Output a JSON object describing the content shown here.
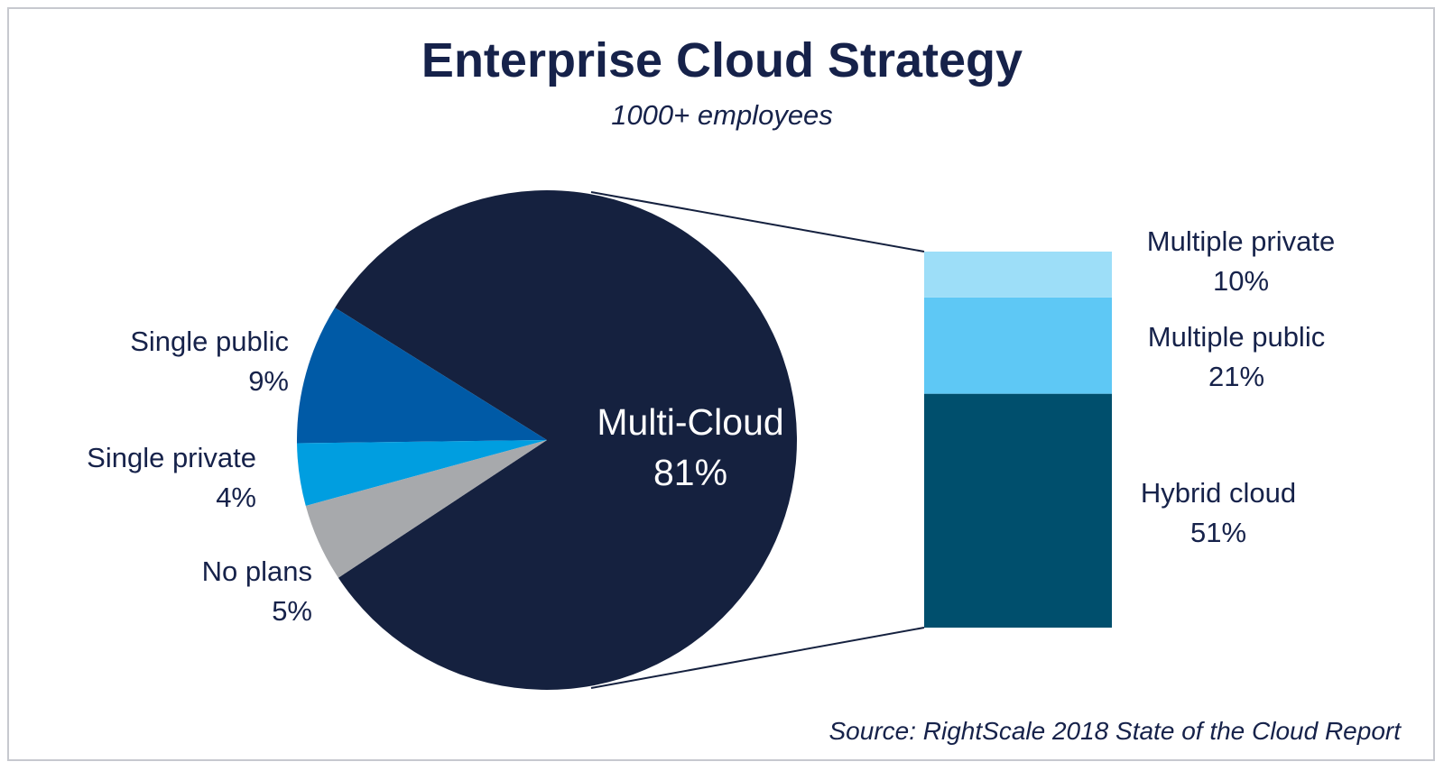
{
  "chart_data": [
    {
      "type": "pie",
      "title": "Enterprise Cloud Strategy",
      "subtitle": "1000+ employees",
      "slices": [
        {
          "label": "Multi-Cloud",
          "value": 81,
          "display": "81%",
          "color": "#15213f"
        },
        {
          "label": "Single public",
          "value": 9,
          "display": "9%",
          "color": "#005aa6"
        },
        {
          "label": "Single private",
          "value": 4,
          "display": "4%",
          "color": "#009ee0"
        },
        {
          "label": "No plans",
          "value": 5,
          "display": "5%",
          "color": "#a7a9ac"
        }
      ]
    },
    {
      "type": "bar",
      "stacked": true,
      "breakdown_of": "Multi-Cloud",
      "segments": [
        {
          "label": "Hybrid cloud",
          "value": 51,
          "display": "51%",
          "color": "#004f6d"
        },
        {
          "label": "Multiple public",
          "value": 21,
          "display": "21%",
          "color": "#5ec8f5"
        },
        {
          "label": "Multiple private",
          "value": 10,
          "display": "10%",
          "color": "#9ddef8"
        }
      ]
    }
  ],
  "source": "Source: RightScale 2018 State of the Cloud Report"
}
